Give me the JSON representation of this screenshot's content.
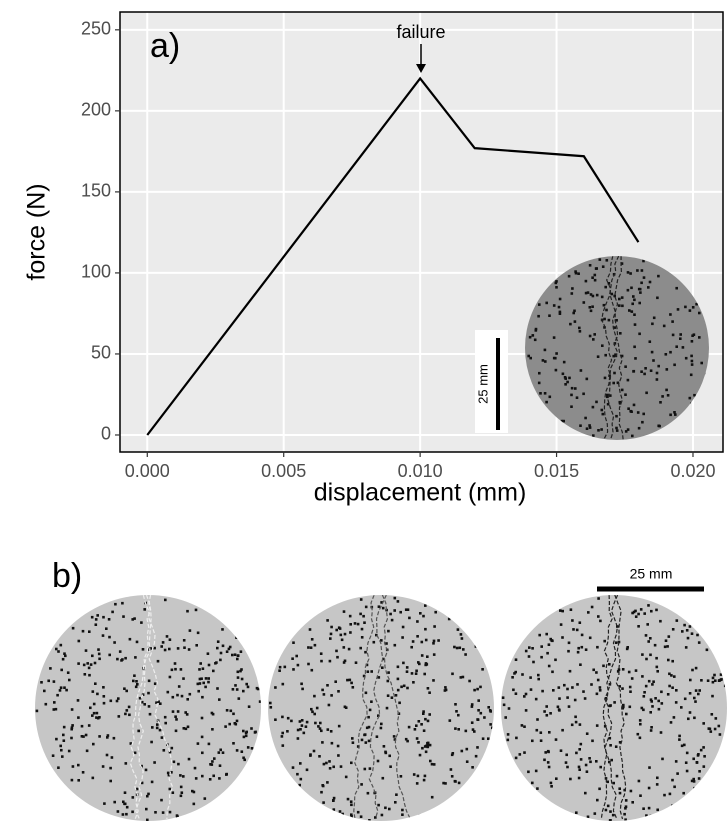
{
  "chart_data": {
    "type": "line",
    "x_label": "displacement (mm)",
    "y_label": "force (N)",
    "panel_labels": [
      "a)",
      "b)"
    ],
    "annotation": "failure",
    "scale_bar_labels": [
      "25 mm",
      "25 mm"
    ],
    "x": [
      0,
      0.01,
      0.012,
      0.016,
      0.018
    ],
    "series": [
      {
        "color": "#000000",
        "values": [
          0,
          220,
          177,
          172,
          119
        ]
      }
    ],
    "xlim": [
      -0.001,
      0.0211
    ],
    "ylim": [
      -10.5,
      261
    ],
    "xticks": [
      {
        "value": 0,
        "label": "0.000"
      },
      {
        "value": 0.005,
        "label": "0.005"
      },
      {
        "value": 0.01,
        "label": "0.010"
      },
      {
        "value": 0.015,
        "label": "0.015"
      },
      {
        "value": 0.02,
        "label": "0.020"
      }
    ],
    "yticks": [
      0,
      50,
      100,
      150,
      200,
      250
    ],
    "grid": true
  }
}
